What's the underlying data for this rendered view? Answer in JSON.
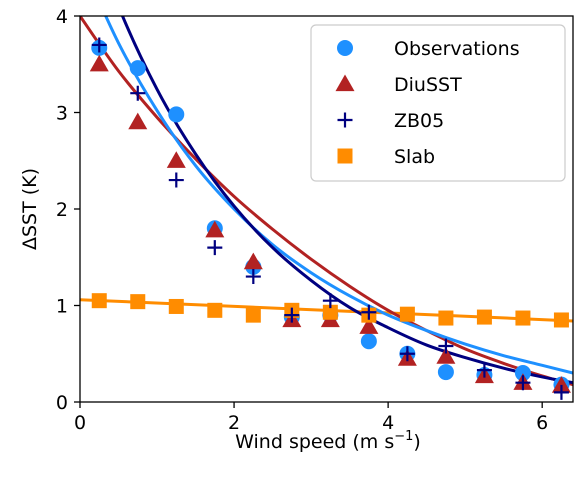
{
  "chart_data": {
    "type": "line",
    "xlabel": "Wind speed (m s",
    "xlabel_sup": "−1",
    "xlabel_close": ")",
    "ylabel": "ΔSST (K)",
    "xlim": [
      0,
      6.4
    ],
    "ylim": [
      0,
      4
    ],
    "x_ticks": [
      "0",
      "2",
      "4",
      "6"
    ],
    "y_ticks": [
      "0",
      "1",
      "2",
      "3",
      "4"
    ],
    "legend_position": "top-right",
    "series": [
      {
        "name": "Observations",
        "color": "#1e90ff",
        "marker": "circle",
        "x": [
          0.25,
          0.75,
          1.25,
          1.75,
          2.25,
          2.75,
          3.25,
          3.75,
          4.25,
          4.75,
          5.25,
          5.75,
          6.25
        ],
        "y": [
          3.67,
          3.46,
          2.98,
          1.8,
          1.4,
          0.88,
          0.9,
          0.63,
          0.5,
          0.31,
          0.28,
          0.3,
          0.18
        ],
        "fit": [
          [
            0.0,
            4.6
          ],
          [
            0.5,
            3.72
          ],
          [
            1.0,
            3.02
          ],
          [
            1.5,
            2.45
          ],
          [
            2.0,
            2.0
          ],
          [
            2.5,
            1.63
          ],
          [
            3.0,
            1.34
          ],
          [
            3.5,
            1.1
          ],
          [
            4.0,
            0.9
          ],
          [
            4.5,
            0.74
          ],
          [
            5.0,
            0.6
          ],
          [
            5.5,
            0.48
          ],
          [
            6.0,
            0.38
          ],
          [
            6.4,
            0.3
          ]
        ]
      },
      {
        "name": "DiuSST",
        "color": "#b22222",
        "marker": "triangle",
        "x": [
          0.25,
          0.75,
          1.25,
          1.75,
          2.25,
          2.75,
          3.25,
          3.75,
          4.25,
          4.75,
          5.25,
          5.75,
          6.25
        ],
        "y": [
          3.5,
          2.9,
          2.5,
          1.78,
          1.45,
          0.85,
          0.85,
          0.78,
          0.45,
          0.47,
          0.27,
          0.2,
          0.17
        ],
        "fit": [
          [
            0.0,
            4.0
          ],
          [
            0.5,
            3.43
          ],
          [
            1.0,
            2.95
          ],
          [
            1.5,
            2.52
          ],
          [
            2.0,
            2.13
          ],
          [
            2.5,
            1.79
          ],
          [
            3.0,
            1.48
          ],
          [
            3.5,
            1.2
          ],
          [
            4.0,
            0.95
          ],
          [
            4.5,
            0.74
          ],
          [
            5.0,
            0.55
          ],
          [
            5.5,
            0.4
          ],
          [
            6.0,
            0.27
          ],
          [
            6.4,
            0.18
          ]
        ]
      },
      {
        "name": "ZB05",
        "color": "#000080",
        "marker": "plus",
        "x": [
          0.25,
          0.75,
          1.25,
          1.75,
          2.25,
          2.75,
          3.25,
          3.75,
          4.25,
          4.75,
          5.25,
          5.75,
          6.25
        ],
        "y": [
          3.7,
          3.2,
          2.3,
          1.6,
          1.3,
          0.9,
          1.05,
          0.93,
          0.5,
          0.58,
          0.33,
          0.2,
          0.1
        ],
        "fit": [
          [
            0.0,
            5.2
          ],
          [
            0.5,
            4.1
          ],
          [
            1.0,
            3.24
          ],
          [
            1.5,
            2.57
          ],
          [
            2.0,
            2.03
          ],
          [
            2.5,
            1.6
          ],
          [
            3.0,
            1.26
          ],
          [
            3.5,
            0.98
          ],
          [
            4.0,
            0.77
          ],
          [
            4.5,
            0.59
          ],
          [
            5.0,
            0.46
          ],
          [
            5.5,
            0.35
          ],
          [
            6.0,
            0.26
          ],
          [
            6.4,
            0.2
          ]
        ]
      },
      {
        "name": "Slab",
        "color": "#ff8c00",
        "marker": "square",
        "x": [
          0.25,
          0.75,
          1.25,
          1.75,
          2.25,
          2.75,
          3.25,
          3.75,
          4.25,
          4.75,
          5.25,
          5.75,
          6.25
        ],
        "y": [
          1.05,
          1.04,
          0.99,
          0.95,
          0.9,
          0.95,
          0.93,
          0.9,
          0.91,
          0.87,
          0.88,
          0.87,
          0.85
        ],
        "fit": [
          [
            0.0,
            1.06
          ],
          [
            6.4,
            0.84
          ]
        ]
      }
    ]
  }
}
